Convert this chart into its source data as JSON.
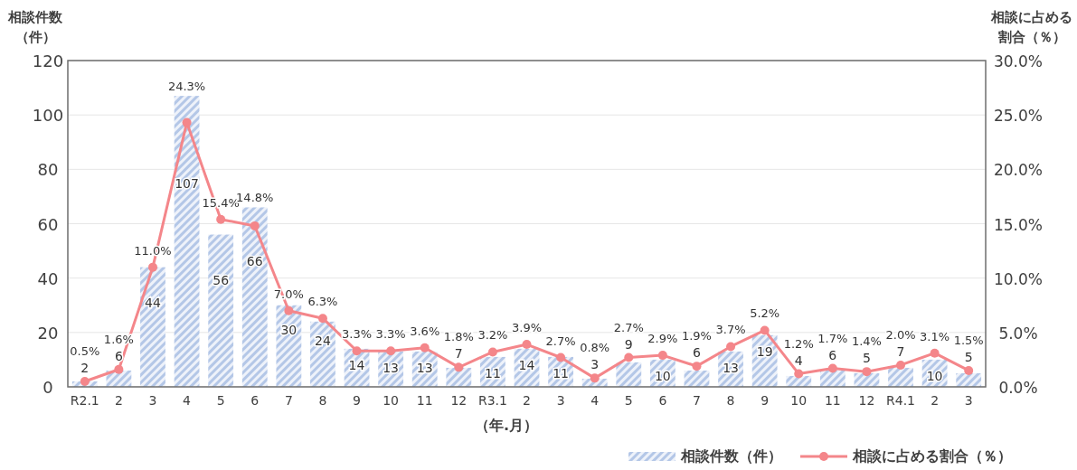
{
  "chart_data": {
    "type": "bar",
    "categories": [
      "R2.1",
      "2",
      "3",
      "4",
      "5",
      "6",
      "7",
      "8",
      "9",
      "10",
      "11",
      "12",
      "R3.1",
      "2",
      "3",
      "4",
      "5",
      "6",
      "7",
      "8",
      "9",
      "10",
      "11",
      "12",
      "R4.1",
      "2",
      "3"
    ],
    "xlabel": "（年.月）",
    "ylabel": "相談件数（件）",
    "y2label": "相談に占める割合（％）",
    "ylim": [
      0,
      120
    ],
    "yticks": [
      0,
      20,
      40,
      60,
      80,
      100,
      120
    ],
    "y2lim": [
      0,
      30
    ],
    "y2ticks": [
      {
        "value": 0,
        "label": "0.0%"
      },
      {
        "value": 5,
        "label": "5.0%"
      },
      {
        "value": 10,
        "label": "10.0%"
      },
      {
        "value": 15,
        "label": "15.0%"
      },
      {
        "value": 20,
        "label": "20.0%"
      },
      {
        "value": 25,
        "label": "25.0%"
      },
      {
        "value": 30,
        "label": "30.0%"
      }
    ],
    "grid": "y",
    "legend": "bottom right",
    "marker": "circle",
    "series": [
      {
        "name": "相談件数（件）",
        "color": "#b4c7e7",
        "values": [
          2,
          6,
          44,
          107,
          56,
          66,
          30,
          24,
          14,
          13,
          13,
          7,
          11,
          14,
          11,
          3,
          9,
          10,
          6,
          13,
          19,
          4,
          6,
          5,
          7,
          10,
          5
        ],
        "value_labels": [
          "2",
          "6",
          "44",
          "107",
          "56",
          "66",
          "30",
          "24",
          "14",
          "13",
          "13",
          "7",
          "11",
          "14",
          "11",
          "3",
          "9",
          "10",
          "6",
          "13",
          "19",
          "4",
          "6",
          "5",
          "7",
          "10",
          "5"
        ]
      },
      {
        "name": "相談に占める割合（％）",
        "type": "line",
        "axis": "y2",
        "color": "#f4868a",
        "values": [
          0.5,
          1.6,
          11.0,
          24.3,
          15.4,
          14.8,
          7.0,
          6.3,
          3.3,
          3.3,
          3.6,
          1.8,
          3.2,
          3.9,
          2.7,
          0.8,
          2.7,
          2.9,
          1.9,
          3.7,
          5.2,
          1.2,
          1.7,
          1.4,
          2.0,
          3.1,
          1.5
        ],
        "value_labels": [
          "0.5%",
          "1.6%",
          "11.0%",
          "24.3%",
          "15.4%",
          "14.8%",
          "7.0%",
          "6.3%",
          "3.3%",
          "3.3%",
          "3.6%",
          "1.8%",
          "3.2%",
          "3.9%",
          "2.7%",
          "0.8%",
          "2.7%",
          "2.9%",
          "1.9%",
          "3.7%",
          "5.2%",
          "1.2%",
          "1.7%",
          "1.4%",
          "2.0%",
          "3.1%",
          "1.5%"
        ]
      }
    ]
  }
}
